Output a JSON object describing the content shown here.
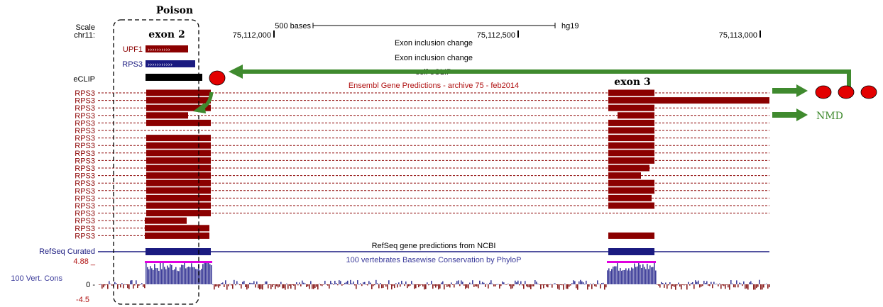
{
  "annotation": {
    "poison_label": "Poison",
    "exon2_label": "exon 2",
    "exon3_label": "exon 3",
    "nmd_label": "NMD"
  },
  "header": {
    "scale_label": "Scale",
    "chrom_label": "chr11:",
    "scale_bar_label": "500 bases",
    "assembly": "hg19",
    "positions": [
      "75,112,000",
      "75,112,500",
      "75,113,000"
    ]
  },
  "tracks": {
    "upf1_label": "UPF1",
    "rps3_label": "RPS3",
    "track_title_1": "Exon inclusion change",
    "track_title_2": "Exon inclusion change",
    "eclip_label": "eCLIP",
    "eclip_title": "self eCLIP",
    "ensembl_title": "Ensembl Gene Predictions - archive 75 - feb2014",
    "ensembl_row_label": "RPS3",
    "refseq_label": "RefSeq Curated",
    "refseq_title": "RefSeq gene predictions from NCBI",
    "cons_title": "100 vertebrates Basewise Conservation by PhyloP",
    "cons_label": "100 Vert. Cons",
    "cons_ymax": "4.88 _",
    "cons_zero": "0 -",
    "cons_ymin": "-4.5"
  },
  "colors": {
    "gene_red": "#8b0000",
    "navy": "#1a1a80",
    "arrow_green": "#3f8a2e",
    "ribosome_red": "#e30000",
    "cons_blue": "#3f3f9a",
    "cons_neg": "#8b2020",
    "cons_top": "#e000e0"
  }
}
